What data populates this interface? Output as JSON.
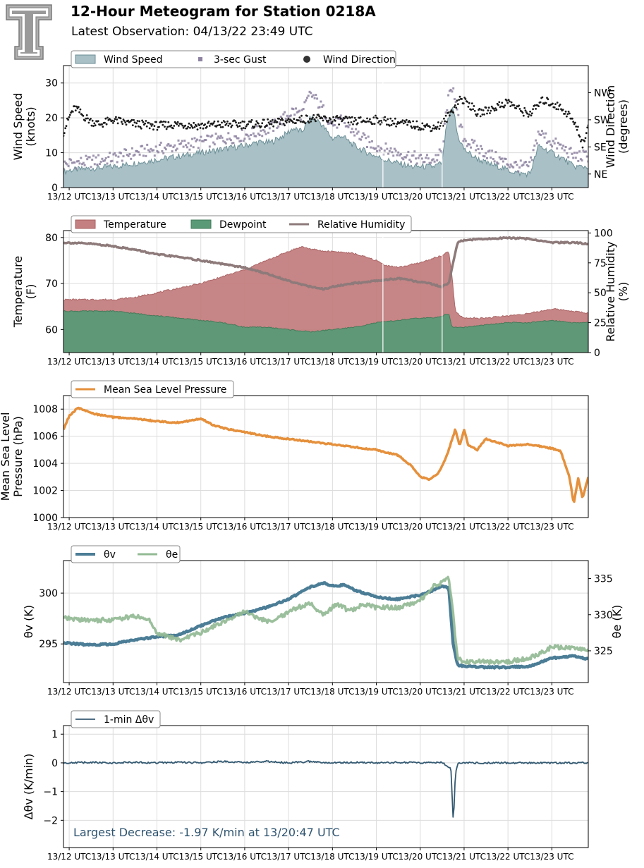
{
  "header": {
    "title": "12-Hour Meteogram for Station 0218A",
    "subtitle": "Latest Observation: 04/13/22 23:49 UTC"
  },
  "colors": {
    "wind_fill": "#a9c0c6",
    "wind_line": "#6b8e96",
    "gust": "#8d83a1",
    "direction": "#1a1a1a",
    "temperature": "#c47f80",
    "dewpoint": "#5a9a77",
    "rh": "#8e7a7a",
    "pressure": "#e5903c",
    "theta_v": "#4b7d96",
    "theta_e": "#93ba94",
    "dtheta": "#345a72",
    "annotation": "#2f5470"
  },
  "x_ticks": [
    "13/12 UTC",
    "13/13 UTC",
    "13/14 UTC",
    "13/15 UTC",
    "13/16 UTC",
    "13/17 UTC",
    "13/18 UTC",
    "13/19 UTC",
    "13/20 UTC",
    "13/21 UTC",
    "13/22 UTC",
    "13/23 UTC"
  ],
  "chart_data": [
    {
      "id": "wind",
      "type": "area",
      "ylabel": "Wind Speed\n(knots)",
      "ylabel2": "Wind Direction\n(degrees)",
      "ylim": [
        0,
        35
      ],
      "yticks": [
        0,
        10,
        20,
        30
      ],
      "y2lim": [
        0,
        405
      ],
      "y2ticks": [
        {
          "value": 45,
          "label": "NE"
        },
        {
          "value": 135,
          "label": "SE"
        },
        {
          "value": 225,
          "label": "SW"
        },
        {
          "value": 315,
          "label": "NW"
        }
      ],
      "xlim": [
        11.87,
        23.83
      ],
      "grid": true,
      "legend": [
        "Wind Speed",
        "3-sec Gust",
        "Wind Direction"
      ],
      "legend_placement": "top-left",
      "series": [
        {
          "name": "Wind Speed",
          "kind": "area",
          "x": [
            11.87,
            12.0,
            12.5,
            13.0,
            13.5,
            14.0,
            14.5,
            15.0,
            15.5,
            16.0,
            16.3,
            16.6,
            16.9,
            17.1,
            17.3,
            17.5,
            17.7,
            18.0,
            18.2,
            18.5,
            18.8,
            19.0,
            19.2,
            19.5,
            19.8,
            20.0,
            20.3,
            20.5,
            20.6,
            20.75,
            20.85,
            21.0,
            21.2,
            21.5,
            21.8,
            22.0,
            22.3,
            22.5,
            22.7,
            23.0,
            23.3,
            23.5,
            23.83
          ],
          "y": [
            4.5,
            5,
            5.5,
            6,
            7,
            8,
            9,
            10,
            11,
            12,
            13,
            13,
            15,
            17,
            16,
            20,
            19,
            14,
            15,
            12,
            10,
            9,
            8,
            7,
            6,
            6,
            6,
            7,
            18,
            23,
            15,
            11,
            9,
            7,
            6,
            5,
            4,
            4,
            12,
            10,
            8,
            6,
            6
          ]
        },
        {
          "name": "3-sec Gust",
          "kind": "scatter",
          "x": [
            11.87,
            12.0,
            12.5,
            13.0,
            13.5,
            14.0,
            14.5,
            15.0,
            15.5,
            16.0,
            16.3,
            16.6,
            16.9,
            17.1,
            17.3,
            17.5,
            17.7,
            18.0,
            18.2,
            18.5,
            18.8,
            19.0,
            19.2,
            19.5,
            19.8,
            20.0,
            20.3,
            20.5,
            20.6,
            20.75,
            20.85,
            21.0,
            21.2,
            21.5,
            21.8,
            22.0,
            22.3,
            22.5,
            22.7,
            23.0,
            23.3,
            23.5,
            23.83
          ],
          "y": [
            6.5,
            7,
            7.5,
            8.5,
            10,
            11,
            12,
            13,
            14,
            15,
            16,
            17,
            20,
            22,
            21,
            27,
            24,
            18,
            19,
            16,
            13,
            12,
            11,
            10,
            9,
            8,
            8,
            10,
            23,
            30,
            20,
            14,
            12,
            10,
            8,
            7,
            6,
            6,
            16,
            13,
            11,
            9,
            9
          ]
        },
        {
          "name": "Wind Direction",
          "kind": "scatter",
          "axis": "right",
          "x": [
            11.87,
            11.95,
            12.05,
            12.15,
            12.3,
            12.5,
            12.7,
            13.0,
            13.3,
            13.6,
            14.0,
            14.5,
            15.0,
            15.5,
            16.0,
            16.5,
            17.0,
            17.5,
            18.0,
            18.5,
            19.0,
            19.5,
            20.0,
            20.3,
            20.5,
            20.7,
            20.9,
            21.1,
            21.3,
            21.6,
            22.0,
            22.3,
            22.5,
            22.8,
            23.0,
            23.2,
            23.4,
            23.6,
            23.7,
            23.83
          ],
          "y": [
            185,
            215,
            250,
            265,
            240,
            220,
            210,
            225,
            215,
            210,
            205,
            210,
            205,
            210,
            210,
            212,
            220,
            230,
            225,
            220,
            225,
            215,
            205,
            200,
            210,
            250,
            295,
            280,
            245,
            260,
            285,
            255,
            245,
            290,
            280,
            265,
            240,
            190,
            145,
            195
          ]
        }
      ]
    },
    {
      "id": "thermo",
      "type": "area",
      "ylabel": "Temperature\n(F)",
      "ylabel2": "Relative Humidity\n(%)",
      "ylim": [
        55,
        81.5
      ],
      "yticks": [
        60,
        70,
        80
      ],
      "y2lim": [
        0,
        102
      ],
      "y2ticks": [
        0,
        25,
        50,
        75,
        100
      ],
      "xlim": [
        11.87,
        23.83
      ],
      "grid": true,
      "legend": [
        "Temperature",
        "Dewpoint",
        "Relative Humidity"
      ],
      "legend_placement": "top-left",
      "series": [
        {
          "name": "Temperature",
          "kind": "area",
          "x": [
            11.87,
            12.5,
            13.0,
            13.5,
            14.0,
            14.5,
            15.0,
            15.5,
            16.0,
            16.5,
            17.0,
            17.3,
            17.5,
            17.8,
            18.0,
            18.5,
            19.0,
            19.2,
            19.5,
            20.0,
            20.3,
            20.5,
            20.65,
            20.72,
            20.8,
            20.9,
            21.0,
            21.5,
            22.0,
            22.5,
            23.0,
            23.5,
            23.83
          ],
          "y": [
            66.5,
            66.5,
            66.5,
            67,
            68,
            69,
            70,
            71.5,
            73,
            75,
            77,
            78,
            77.5,
            77,
            77,
            76.5,
            75,
            74,
            73.5,
            74.5,
            75.5,
            76,
            77,
            72,
            64,
            63,
            62.5,
            62.5,
            63,
            63.5,
            64.5,
            64,
            63.5
          ]
        },
        {
          "name": "Dewpoint",
          "kind": "area",
          "x": [
            11.87,
            12.5,
            13.0,
            13.5,
            14.0,
            14.5,
            15.0,
            15.5,
            16.0,
            16.5,
            17.0,
            17.5,
            18.0,
            18.5,
            19.0,
            19.5,
            20.0,
            20.3,
            20.5,
            20.65,
            20.72,
            20.8,
            21.0,
            21.5,
            22.0,
            22.5,
            23.0,
            23.5,
            23.83
          ],
          "y": [
            64,
            64,
            64,
            63.5,
            63,
            62.5,
            62,
            61.5,
            60.5,
            60.5,
            60,
            59.5,
            60,
            60.5,
            61.5,
            62,
            62.5,
            62.5,
            63,
            63.5,
            60.5,
            60.5,
            60.5,
            61,
            61.5,
            61.5,
            62,
            61.5,
            61.5
          ]
        },
        {
          "name": "Relative Humidity",
          "kind": "line",
          "axis": "right",
          "x": [
            11.87,
            12.5,
            13.0,
            13.5,
            14.0,
            14.5,
            15.0,
            15.5,
            16.0,
            16.5,
            17.0,
            17.3,
            17.5,
            17.8,
            18.0,
            18.5,
            19.0,
            19.5,
            20.0,
            20.3,
            20.5,
            20.65,
            20.75,
            20.85,
            21.0,
            21.5,
            22.0,
            22.5,
            23.0,
            23.5,
            23.83
          ],
          "y": [
            92,
            91,
            89,
            86,
            82,
            80,
            77,
            74,
            71,
            66,
            60,
            57,
            55,
            53,
            55,
            58,
            60,
            62,
            59,
            57,
            55,
            58,
            75,
            92,
            94,
            95,
            96,
            95,
            92,
            92,
            91
          ]
        }
      ]
    },
    {
      "id": "pressure",
      "type": "line",
      "ylabel": "Mean Sea Level\nPressure (hPa)",
      "ylim": [
        1000,
        1009
      ],
      "yticks": [
        1000,
        1002,
        1004,
        1006,
        1008
      ],
      "xlim": [
        11.87,
        23.83
      ],
      "grid": true,
      "legend": [
        "Mean Sea Level Pressure"
      ],
      "legend_placement": "top-left",
      "series": [
        {
          "name": "Mean Sea Level Pressure",
          "kind": "line",
          "x": [
            11.87,
            12.0,
            12.2,
            12.5,
            13.0,
            13.5,
            14.0,
            14.5,
            15.0,
            15.3,
            15.5,
            16.0,
            16.5,
            17.0,
            17.5,
            18.0,
            18.5,
            19.0,
            19.5,
            19.8,
            20.0,
            20.2,
            20.4,
            20.6,
            20.8,
            20.9,
            21.0,
            21.1,
            21.3,
            21.5,
            22.0,
            22.5,
            23.0,
            23.2,
            23.4,
            23.5,
            23.6,
            23.7,
            23.83
          ],
          "y": [
            1006.5,
            1007.5,
            1008.1,
            1007.7,
            1007.4,
            1007.3,
            1007.1,
            1007.0,
            1007.3,
            1006.8,
            1006.6,
            1006.3,
            1006.0,
            1005.8,
            1005.6,
            1005.4,
            1005.2,
            1005.0,
            1004.6,
            1003.8,
            1003.0,
            1002.8,
            1003.2,
            1004.5,
            1006.5,
            1005.3,
            1006.5,
            1005.3,
            1005.0,
            1005.8,
            1005.3,
            1005.4,
            1005.1,
            1004.9,
            1003.0,
            1001.0,
            1002.9,
            1001.4,
            1003.0
          ]
        }
      ]
    },
    {
      "id": "theta",
      "type": "line",
      "ylabel": "θv (K)",
      "ylabel2": "θe (K)",
      "ylim": [
        291.2,
        303.2
      ],
      "yticks": [
        295,
        300
      ],
      "y2lim": [
        320.6,
        337.5
      ],
      "y2ticks": [
        325,
        330,
        335
      ],
      "xlim": [
        11.87,
        23.83
      ],
      "grid": true,
      "legend": [
        "θv",
        "θe"
      ],
      "legend_placement": "top-left",
      "series": [
        {
          "name": "θv",
          "kind": "line",
          "x": [
            11.87,
            12.5,
            13.0,
            13.5,
            14.0,
            14.5,
            15.0,
            15.5,
            16.0,
            16.5,
            17.0,
            17.5,
            17.8,
            18.0,
            18.3,
            18.5,
            19.0,
            19.5,
            20.0,
            20.3,
            20.5,
            20.65,
            20.75,
            20.85,
            21.0,
            21.5,
            22.0,
            22.5,
            23.0,
            23.5,
            23.83
          ],
          "y": [
            295.1,
            294.9,
            295.0,
            295.4,
            295.7,
            295.9,
            296.8,
            297.6,
            298.0,
            298.6,
            299.4,
            300.6,
            301.0,
            300.7,
            300.8,
            300.3,
            299.6,
            299.4,
            299.8,
            300.3,
            300.7,
            300.5,
            295.0,
            292.9,
            292.8,
            292.7,
            292.7,
            292.8,
            293.6,
            293.8,
            293.5
          ]
        },
        {
          "name": "θe",
          "kind": "line",
          "axis": "right",
          "x": [
            11.87,
            12.5,
            13.0,
            13.5,
            13.8,
            14.0,
            14.5,
            15.0,
            15.5,
            16.0,
            16.3,
            16.6,
            16.9,
            17.2,
            17.5,
            17.8,
            18.1,
            18.4,
            18.7,
            19.0,
            19.5,
            20.0,
            20.3,
            20.5,
            20.65,
            20.75,
            20.85,
            21.0,
            21.5,
            22.0,
            22.5,
            23.0,
            23.5,
            23.83
          ],
          "y": [
            329.5,
            329.2,
            329.3,
            329.8,
            329.4,
            327.5,
            326.5,
            327.5,
            329.0,
            330.5,
            329.5,
            329.0,
            330.0,
            331.0,
            331.5,
            330.0,
            331.5,
            330.5,
            331.5,
            331.0,
            331.0,
            332.0,
            334.0,
            334.5,
            335.0,
            330.0,
            324.0,
            323.5,
            323.5,
            323.5,
            324.0,
            325.5,
            325.5,
            325.0
          ]
        }
      ]
    },
    {
      "id": "dtheta",
      "type": "line",
      "ylabel": "Δθv (K/min)",
      "ylim": [
        -2.95,
        1.3
      ],
      "yticks": [
        -2,
        -1,
        0,
        1
      ],
      "xlim": [
        11.87,
        23.83
      ],
      "grid": true,
      "legend": [
        "1-min Δθv"
      ],
      "legend_placement": "top-left",
      "annotation": "Largest Decrease: -1.97 K/min at 13/20:47 UTC",
      "series": [
        {
          "name": "1-min Δθv",
          "kind": "line",
          "x": [
            11.87,
            12.5,
            13.0,
            13.5,
            14.0,
            14.5,
            15.0,
            15.5,
            16.0,
            16.5,
            17.0,
            17.5,
            18.0,
            18.5,
            19.0,
            19.5,
            20.0,
            20.5,
            20.7,
            20.75,
            20.78,
            20.8,
            20.85,
            20.9,
            21.0,
            21.5,
            22.0,
            22.5,
            23.0,
            23.5,
            23.83
          ],
          "y": [
            0,
            0.02,
            0,
            0.02,
            0,
            0.02,
            0,
            0.05,
            0.02,
            0.05,
            0,
            0.05,
            0,
            0.02,
            0,
            0.02,
            0,
            0.02,
            -0.2,
            -1.97,
            -1.4,
            -0.4,
            -0.05,
            0,
            0,
            0,
            0,
            0,
            0,
            0,
            0
          ]
        }
      ]
    }
  ]
}
